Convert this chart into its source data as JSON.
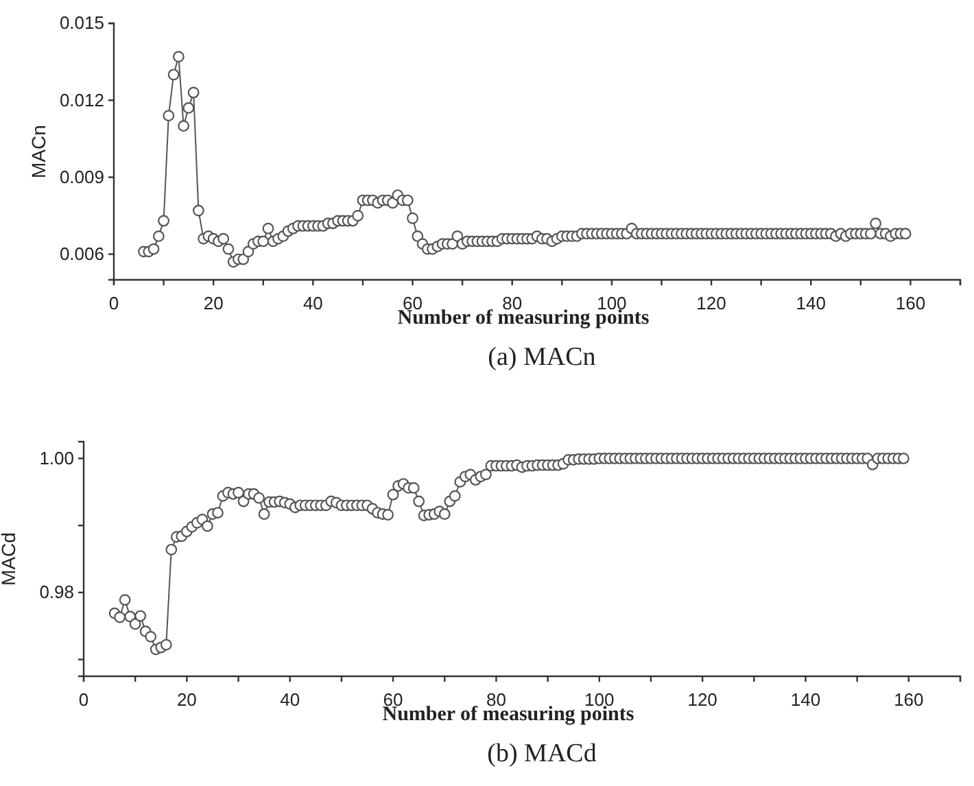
{
  "chart_data": [
    {
      "type": "line",
      "ylabel": "MACn",
      "xlabel": "Number of measuring points",
      "annotations": [
        "(a) MACn"
      ],
      "marker": "circle",
      "line_style": "solid",
      "grid": false,
      "xlim": [
        0,
        170
      ],
      "xticks": [
        0,
        {
          "value": 10,
          "label": null
        },
        20,
        {
          "value": 30,
          "label": null
        },
        40,
        {
          "value": 50,
          "label": null
        },
        60,
        {
          "value": 70,
          "label": null
        },
        80,
        {
          "value": 90,
          "label": null
        },
        100,
        {
          "value": 110,
          "label": null
        },
        120,
        {
          "value": 130,
          "label": null
        },
        140,
        {
          "value": 150,
          "label": null
        },
        160,
        {
          "value": 170,
          "label": null
        }
      ],
      "ylim": [
        0.005,
        0.015
      ],
      "yticks": [
        0.006,
        0.009,
        0.012,
        0.015
      ],
      "series": [
        {
          "color": "#555555",
          "x": [
            6,
            7,
            8,
            9,
            10,
            11,
            12,
            13,
            14,
            15,
            16,
            17,
            18,
            19,
            20,
            21,
            22,
            23,
            24,
            25,
            26,
            27,
            28,
            29,
            30,
            31,
            32,
            33,
            34,
            35,
            36,
            37,
            38,
            39,
            40,
            41,
            42,
            43,
            44,
            45,
            46,
            47,
            48,
            49,
            50,
            51,
            52,
            53,
            54,
            55,
            56,
            57,
            58,
            59,
            60,
            61,
            62,
            63,
            64,
            65,
            66,
            67,
            68,
            69,
            70,
            71,
            72,
            73,
            74,
            75,
            76,
            77,
            78,
            79,
            80,
            81,
            82,
            83,
            84,
            85,
            86,
            87,
            88,
            89,
            90,
            91,
            92,
            93,
            94,
            95,
            96,
            97,
            98,
            99,
            100,
            101,
            102,
            103,
            104,
            105,
            106,
            107,
            108,
            109,
            110,
            111,
            112,
            113,
            114,
            115,
            116,
            117,
            118,
            119,
            120,
            121,
            122,
            123,
            124,
            125,
            126,
            127,
            128,
            129,
            130,
            131,
            132,
            133,
            134,
            135,
            136,
            137,
            138,
            139,
            140,
            141,
            142,
            143,
            144,
            145,
            146,
            147,
            148,
            149,
            150,
            151,
            152,
            153,
            154,
            155,
            156,
            157,
            158,
            159
          ],
          "values": [
            0.0061,
            0.0061,
            0.0062,
            0.0067,
            0.0073,
            0.0114,
            0.013,
            0.0137,
            0.011,
            0.0117,
            0.0123,
            0.0077,
            0.0066,
            0.0067,
            0.0066,
            0.0065,
            0.0066,
            0.0062,
            0.0057,
            0.0058,
            0.0058,
            0.0061,
            0.0064,
            0.0065,
            0.0065,
            0.007,
            0.0065,
            0.0066,
            0.0067,
            0.0069,
            0.007,
            0.0071,
            0.0071,
            0.0071,
            0.0071,
            0.0071,
            0.0071,
            0.0072,
            0.0072,
            0.0073,
            0.0073,
            0.0073,
            0.0073,
            0.0075,
            0.0081,
            0.0081,
            0.0081,
            0.008,
            0.0081,
            0.0081,
            0.008,
            0.0083,
            0.0081,
            0.0081,
            0.0074,
            0.0067,
            0.0064,
            0.0062,
            0.0062,
            0.0063,
            0.0064,
            0.0064,
            0.0064,
            0.0067,
            0.0064,
            0.0065,
            0.0065,
            0.0065,
            0.0065,
            0.0065,
            0.0065,
            0.0065,
            0.0066,
            0.0066,
            0.0066,
            0.0066,
            0.0066,
            0.0066,
            0.0066,
            0.0067,
            0.0066,
            0.0066,
            0.0065,
            0.0066,
            0.0067,
            0.0067,
            0.0067,
            0.0067,
            0.0068,
            0.0068,
            0.0068,
            0.0068,
            0.0068,
            0.0068,
            0.0068,
            0.0068,
            0.0068,
            0.0068,
            0.007,
            0.0068,
            0.0068,
            0.0068,
            0.0068,
            0.0068,
            0.0068,
            0.0068,
            0.0068,
            0.0068,
            0.0068,
            0.0068,
            0.0068,
            0.0068,
            0.0068,
            0.0068,
            0.0068,
            0.0068,
            0.0068,
            0.0068,
            0.0068,
            0.0068,
            0.0068,
            0.0068,
            0.0068,
            0.0068,
            0.0068,
            0.0068,
            0.0068,
            0.0068,
            0.0068,
            0.0068,
            0.0068,
            0.0068,
            0.0068,
            0.0068,
            0.0068,
            0.0068,
            0.0068,
            0.0068,
            0.0068,
            0.0067,
            0.0068,
            0.0067,
            0.0068,
            0.0068,
            0.0068,
            0.0068,
            0.0068,
            0.0072,
            0.0068,
            0.0068,
            0.0067,
            0.0068,
            0.0068,
            0.0068
          ]
        }
      ]
    },
    {
      "type": "line",
      "ylabel": "MACd",
      "xlabel": "Number of measuring points",
      "annotations": [
        "(b) MACd"
      ],
      "marker": "circle",
      "line_style": "solid",
      "grid": false,
      "xlim": [
        0,
        170
      ],
      "xticks": [
        0,
        {
          "value": 10,
          "label": null
        },
        20,
        {
          "value": 30,
          "label": null
        },
        40,
        {
          "value": 50,
          "label": null
        },
        60,
        {
          "value": 70,
          "label": null
        },
        80,
        {
          "value": 90,
          "label": null
        },
        100,
        {
          "value": 110,
          "label": null
        },
        120,
        {
          "value": 130,
          "label": null
        },
        140,
        {
          "value": 150,
          "label": null
        },
        160,
        {
          "value": 170,
          "label": null
        }
      ],
      "ylim": [
        0.9675,
        1.0025
      ],
      "yticks": [
        {
          "value": 0.97,
          "label": null
        },
        {
          "value": 0.98,
          "label": "0.98"
        },
        {
          "value": 0.99,
          "label": null
        },
        {
          "value": 1.0,
          "label": "1.00"
        }
      ],
      "series": [
        {
          "color": "#555555",
          "x": [
            6,
            7,
            8,
            9,
            10,
            11,
            12,
            13,
            14,
            15,
            16,
            17,
            18,
            19,
            20,
            21,
            22,
            23,
            24,
            25,
            26,
            27,
            28,
            29,
            30,
            31,
            32,
            33,
            34,
            35,
            36,
            37,
            38,
            39,
            40,
            41,
            42,
            43,
            44,
            45,
            46,
            47,
            48,
            49,
            50,
            51,
            52,
            53,
            54,
            55,
            56,
            57,
            58,
            59,
            60,
            61,
            62,
            63,
            64,
            65,
            66,
            67,
            68,
            69,
            70,
            71,
            72,
            73,
            74,
            75,
            76,
            77,
            78,
            79,
            80,
            81,
            82,
            83,
            84,
            85,
            86,
            87,
            88,
            89,
            90,
            91,
            92,
            93,
            94,
            95,
            96,
            97,
            98,
            99,
            100,
            101,
            102,
            103,
            104,
            105,
            106,
            107,
            108,
            109,
            110,
            111,
            112,
            113,
            114,
            115,
            116,
            117,
            118,
            119,
            120,
            121,
            122,
            123,
            124,
            125,
            126,
            127,
            128,
            129,
            130,
            131,
            132,
            133,
            134,
            135,
            136,
            137,
            138,
            139,
            140,
            141,
            142,
            143,
            144,
            145,
            146,
            147,
            148,
            149,
            150,
            151,
            152,
            153,
            154,
            155,
            156,
            157,
            158,
            159
          ],
          "values": [
            0.9769,
            0.9763,
            0.9789,
            0.9764,
            0.9753,
            0.9765,
            0.9742,
            0.9734,
            0.9715,
            0.9718,
            0.9722,
            0.9864,
            0.9883,
            0.9884,
            0.9891,
            0.9898,
            0.9904,
            0.9909,
            0.9899,
            0.9917,
            0.9919,
            0.9944,
            0.9949,
            0.9947,
            0.9949,
            0.9936,
            0.9947,
            0.9947,
            0.9941,
            0.9917,
            0.9935,
            0.9935,
            0.9936,
            0.9934,
            0.9932,
            0.9927,
            0.993,
            0.993,
            0.993,
            0.993,
            0.993,
            0.993,
            0.9936,
            0.9934,
            0.993,
            0.993,
            0.993,
            0.993,
            0.993,
            0.993,
            0.9925,
            0.9919,
            0.9917,
            0.9916,
            0.9946,
            0.9959,
            0.9962,
            0.9956,
            0.9956,
            0.9936,
            0.9915,
            0.9916,
            0.9917,
            0.9921,
            0.9917,
            0.9936,
            0.9944,
            0.9965,
            0.9973,
            0.9976,
            0.9968,
            0.9973,
            0.9976,
            0.9989,
            0.9989,
            0.9989,
            0.9989,
            0.9989,
            0.999,
            0.9987,
            0.9989,
            0.9989,
            0.999,
            0.999,
            0.999,
            0.999,
            0.999,
            0.9992,
            0.9998,
            0.9998,
            0.9999,
            0.9999,
            0.9999,
            0.9999,
            1.0,
            1.0,
            1.0,
            1.0,
            1.0,
            1.0,
            1.0,
            1.0,
            1.0,
            1.0,
            1.0,
            1.0,
            1.0,
            1.0,
            1.0,
            1.0,
            1.0,
            1.0,
            1.0,
            1.0,
            1.0,
            1.0,
            1.0,
            1.0,
            1.0,
            1.0,
            1.0,
            1.0,
            1.0,
            1.0,
            1.0,
            1.0,
            1.0,
            1.0,
            1.0,
            1.0,
            1.0,
            1.0,
            1.0,
            1.0,
            1.0,
            1.0,
            1.0,
            1.0,
            1.0,
            1.0,
            1.0,
            1.0,
            1.0,
            1.0,
            1.0,
            1.0,
            1.0,
            0.9991,
            1.0,
            1.0,
            1.0,
            1.0,
            1.0,
            1.0
          ]
        }
      ]
    }
  ]
}
